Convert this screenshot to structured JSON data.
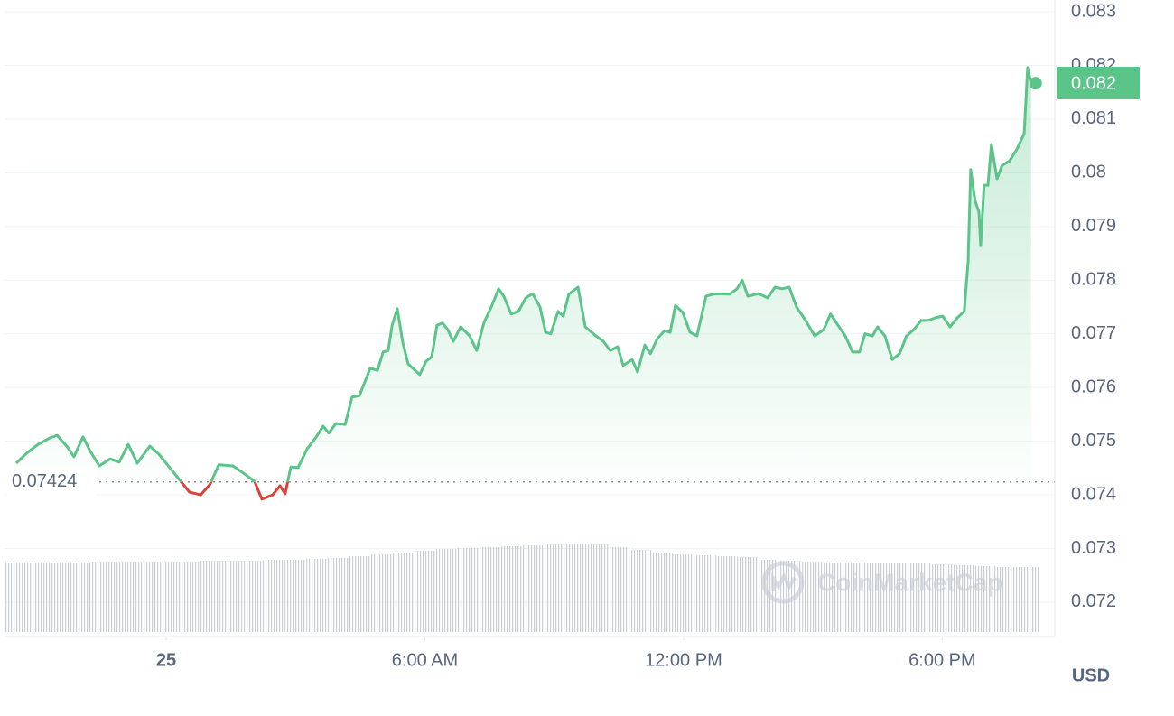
{
  "chart_data": {
    "type": "line",
    "x": [
      -3.48,
      -3.23,
      -2.97,
      -2.7,
      -2.53,
      -2.28,
      -2.14,
      -1.93,
      -1.76,
      -1.55,
      -1.3,
      -1.09,
      -0.88,
      -0.67,
      -0.38,
      -0.17,
      0.08,
      0.27,
      0.54,
      0.8,
      1.01,
      1.22,
      1.55,
      1.8,
      2.05,
      2.22,
      2.47,
      2.64,
      2.76,
      2.89,
      3.06,
      3.27,
      3.48,
      3.64,
      3.77,
      3.94,
      4.15,
      4.31,
      4.48,
      4.63,
      4.73,
      4.9,
      5.03,
      5.15,
      5.24,
      5.36,
      5.49,
      5.61,
      5.88,
      6.03,
      6.16,
      6.28,
      6.41,
      6.53,
      6.66,
      6.83,
      7.04,
      7.2,
      7.37,
      7.54,
      7.71,
      7.83,
      8.0,
      8.17,
      8.34,
      8.5,
      8.67,
      8.8,
      8.92,
      9.09,
      9.21,
      9.34,
      9.55,
      9.72,
      9.97,
      10.14,
      10.3,
      10.47,
      10.6,
      10.81,
      10.93,
      11.1,
      11.23,
      11.39,
      11.56,
      11.69,
      11.81,
      11.98,
      12.15,
      12.31,
      12.52,
      12.69,
      12.86,
      13.07,
      13.24,
      13.36,
      13.49,
      13.74,
      13.95,
      14.12,
      14.28,
      14.45,
      14.62,
      14.83,
      15.04,
      15.25,
      15.41,
      15.58,
      15.75,
      15.92,
      16.08,
      16.21,
      16.38,
      16.5,
      16.67,
      16.84,
      17.01,
      17.17,
      17.34,
      17.51,
      17.68,
      17.84,
      18.01,
      18.18,
      18.35,
      18.51,
      18.6,
      18.66,
      18.76,
      18.85,
      18.89,
      18.97,
      19.06,
      19.14,
      19.27,
      19.39,
      19.56,
      19.73,
      19.9,
      19.98,
      20.06
    ],
    "series": [
      {
        "name": "Price",
        "color": "#5bc489",
        "down_color": "#d9433b",
        "values": [
          0.07459,
          0.07478,
          0.07494,
          0.07506,
          0.07511,
          0.07488,
          0.07471,
          0.07508,
          0.07481,
          0.07454,
          0.07467,
          0.07461,
          0.07494,
          0.07459,
          0.07491,
          0.07476,
          0.07451,
          0.07432,
          0.07405,
          0.074,
          0.07419,
          0.07456,
          0.07454,
          0.0744,
          0.07425,
          0.07392,
          0.074,
          0.07417,
          0.07402,
          0.07452,
          0.07451,
          0.07486,
          0.07508,
          0.07528,
          0.07515,
          0.07533,
          0.07531,
          0.07582,
          0.07585,
          0.07615,
          0.07636,
          0.07632,
          0.07666,
          0.07669,
          0.07716,
          0.07747,
          0.07683,
          0.07644,
          0.07624,
          0.07649,
          0.07657,
          0.07716,
          0.0772,
          0.07708,
          0.07686,
          0.07713,
          0.07696,
          0.07669,
          0.07721,
          0.0775,
          0.07784,
          0.0777,
          0.07737,
          0.07742,
          0.07767,
          0.07775,
          0.0775,
          0.07703,
          0.077,
          0.07742,
          0.07733,
          0.07774,
          0.07787,
          0.07713,
          0.07696,
          0.07686,
          0.07669,
          0.07676,
          0.07641,
          0.07652,
          0.07629,
          0.07679,
          0.07663,
          0.07691,
          0.07706,
          0.07703,
          0.07753,
          0.0774,
          0.07703,
          0.07696,
          0.0777,
          0.07774,
          0.07775,
          0.07774,
          0.07784,
          0.078,
          0.0777,
          0.07775,
          0.07767,
          0.07787,
          0.07784,
          0.07787,
          0.0775,
          0.07725,
          0.07696,
          0.07708,
          0.07737,
          0.07716,
          0.07696,
          0.07666,
          0.07666,
          0.077,
          0.07696,
          0.07713,
          0.07696,
          0.07652,
          0.07663,
          0.07696,
          0.07708,
          0.07725,
          0.07725,
          0.0773,
          0.07733,
          0.07713,
          0.0773,
          0.07742,
          0.07834,
          0.08006,
          0.07948,
          0.07927,
          0.07864,
          0.07977,
          0.07977,
          0.08053,
          0.07989,
          0.08014,
          0.08022,
          0.08044,
          0.08073,
          0.08196,
          0.08167
        ]
      }
    ],
    "baseline": 0.07424,
    "price_tag": "0.082",
    "xlim": [
      -3.75,
      20.61
    ],
    "ylim": [
      0.07136,
      0.08322
    ],
    "xticks": [
      {
        "value": 0,
        "label": "25"
      },
      {
        "value": 6,
        "label": "6:00 AM"
      },
      {
        "value": 12,
        "label": "12:00 PM"
      },
      {
        "value": 18,
        "label": "6:00 PM"
      }
    ],
    "yticks": [
      0.072,
      0.073,
      0.074,
      0.075,
      0.076,
      0.077,
      0.078,
      0.079,
      0.08,
      0.081,
      0.082,
      0.083
    ],
    "currency": "USD",
    "watermark": "CoinMarketCap",
    "grid": true,
    "volume": {
      "color": "#c9ced6",
      "ylim": [
        0,
        100
      ],
      "x": [
        -3.5,
        -3,
        -2.5,
        -2,
        -1.5,
        -1,
        -0.5,
        0,
        0.5,
        1,
        1.5,
        2,
        2.5,
        3,
        3.5,
        4,
        4.5,
        5,
        5.5,
        6,
        6.5,
        7,
        7.5,
        8,
        8.5,
        9,
        9.5,
        10,
        10.5,
        11,
        11.5,
        12,
        12.5,
        13,
        13.5,
        14,
        14.5,
        15,
        15.5,
        16,
        16.5,
        17,
        17.5,
        18,
        18.5,
        19,
        19.5,
        20
      ],
      "values": [
        77,
        77,
        77,
        77,
        78,
        78,
        78,
        78,
        78,
        79,
        79,
        79,
        80,
        80,
        81,
        82,
        84,
        86,
        88,
        90,
        92,
        93,
        94,
        95,
        96,
        97,
        98,
        97,
        94,
        91,
        88,
        86,
        85,
        84,
        83,
        80,
        79,
        78,
        77,
        77,
        76,
        76,
        76,
        75,
        74,
        73,
        72,
        72
      ]
    }
  }
}
